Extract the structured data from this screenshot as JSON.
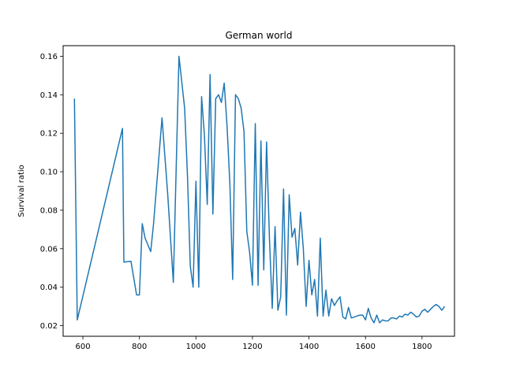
{
  "chart_data": {
    "type": "line",
    "title": "German world",
    "xlabel": "",
    "ylabel": "Survival ratio",
    "xlim": [
      530,
      1915
    ],
    "ylim": [
      0.0145,
      0.1655
    ],
    "xticks": [
      600,
      800,
      1000,
      1200,
      1400,
      1600,
      1800
    ],
    "yticks": [
      0.02,
      0.04,
      0.06,
      0.08,
      0.1,
      0.12,
      0.14,
      0.16
    ],
    "ytick_labels": [
      "0.02",
      "0.04",
      "0.06",
      "0.08",
      "0.10",
      "0.12",
      "0.14",
      "0.16"
    ],
    "grid": false,
    "line_color": "#1f77b4",
    "series": [
      {
        "x": [
          570,
          580,
          740,
          745,
          770,
          790,
          800,
          810,
          820,
          840,
          850,
          880,
          900,
          920,
          940,
          960,
          970,
          980,
          990,
          1000,
          1010,
          1020,
          1030,
          1040,
          1050,
          1060,
          1070,
          1080,
          1090,
          1100,
          1110,
          1120,
          1130,
          1140,
          1150,
          1160,
          1170,
          1180,
          1190,
          1200,
          1210,
          1220,
          1230,
          1240,
          1250,
          1260,
          1270,
          1280,
          1290,
          1300,
          1310,
          1320,
          1330,
          1340,
          1350,
          1360,
          1370,
          1380,
          1390,
          1400,
          1410,
          1420,
          1430,
          1440,
          1450,
          1460,
          1470,
          1480,
          1490,
          1500,
          1510,
          1520,
          1530,
          1540,
          1550,
          1560,
          1570,
          1580,
          1590,
          1600,
          1610,
          1620,
          1630,
          1640,
          1650,
          1660,
          1670,
          1680,
          1690,
          1700,
          1710,
          1720,
          1730,
          1740,
          1750,
          1760,
          1770,
          1780,
          1790,
          1800,
          1810,
          1820,
          1830,
          1840,
          1850,
          1860,
          1870,
          1880
        ],
        "y": [
          0.138,
          0.023,
          0.1225,
          0.053,
          0.0535,
          0.036,
          0.036,
          0.073,
          0.0655,
          0.0585,
          0.073,
          0.128,
          0.0885,
          0.0425,
          0.16,
          0.133,
          0.098,
          0.051,
          0.04,
          0.095,
          0.04,
          0.139,
          0.119,
          0.083,
          0.1505,
          0.078,
          0.138,
          0.14,
          0.136,
          0.146,
          0.124,
          0.094,
          0.044,
          0.14,
          0.138,
          0.133,
          0.121,
          0.069,
          0.058,
          0.041,
          0.125,
          0.041,
          0.116,
          0.049,
          0.1155,
          0.066,
          0.029,
          0.0715,
          0.028,
          0.035,
          0.091,
          0.0255,
          0.088,
          0.066,
          0.0705,
          0.0515,
          0.079,
          0.06,
          0.03,
          0.054,
          0.036,
          0.044,
          0.025,
          0.0655,
          0.025,
          0.0385,
          0.025,
          0.034,
          0.0305,
          0.033,
          0.035,
          0.0245,
          0.0235,
          0.0295,
          0.024,
          0.0245,
          0.025,
          0.0255,
          0.0255,
          0.023,
          0.029,
          0.024,
          0.0215,
          0.0255,
          0.0215,
          0.023,
          0.0225,
          0.0225,
          0.024,
          0.024,
          0.0235,
          0.025,
          0.0245,
          0.026,
          0.0255,
          0.027,
          0.026,
          0.0245,
          0.025,
          0.0275,
          0.0285,
          0.027,
          0.0285,
          0.03,
          0.031,
          0.03,
          0.028,
          0.03
        ]
      }
    ]
  }
}
